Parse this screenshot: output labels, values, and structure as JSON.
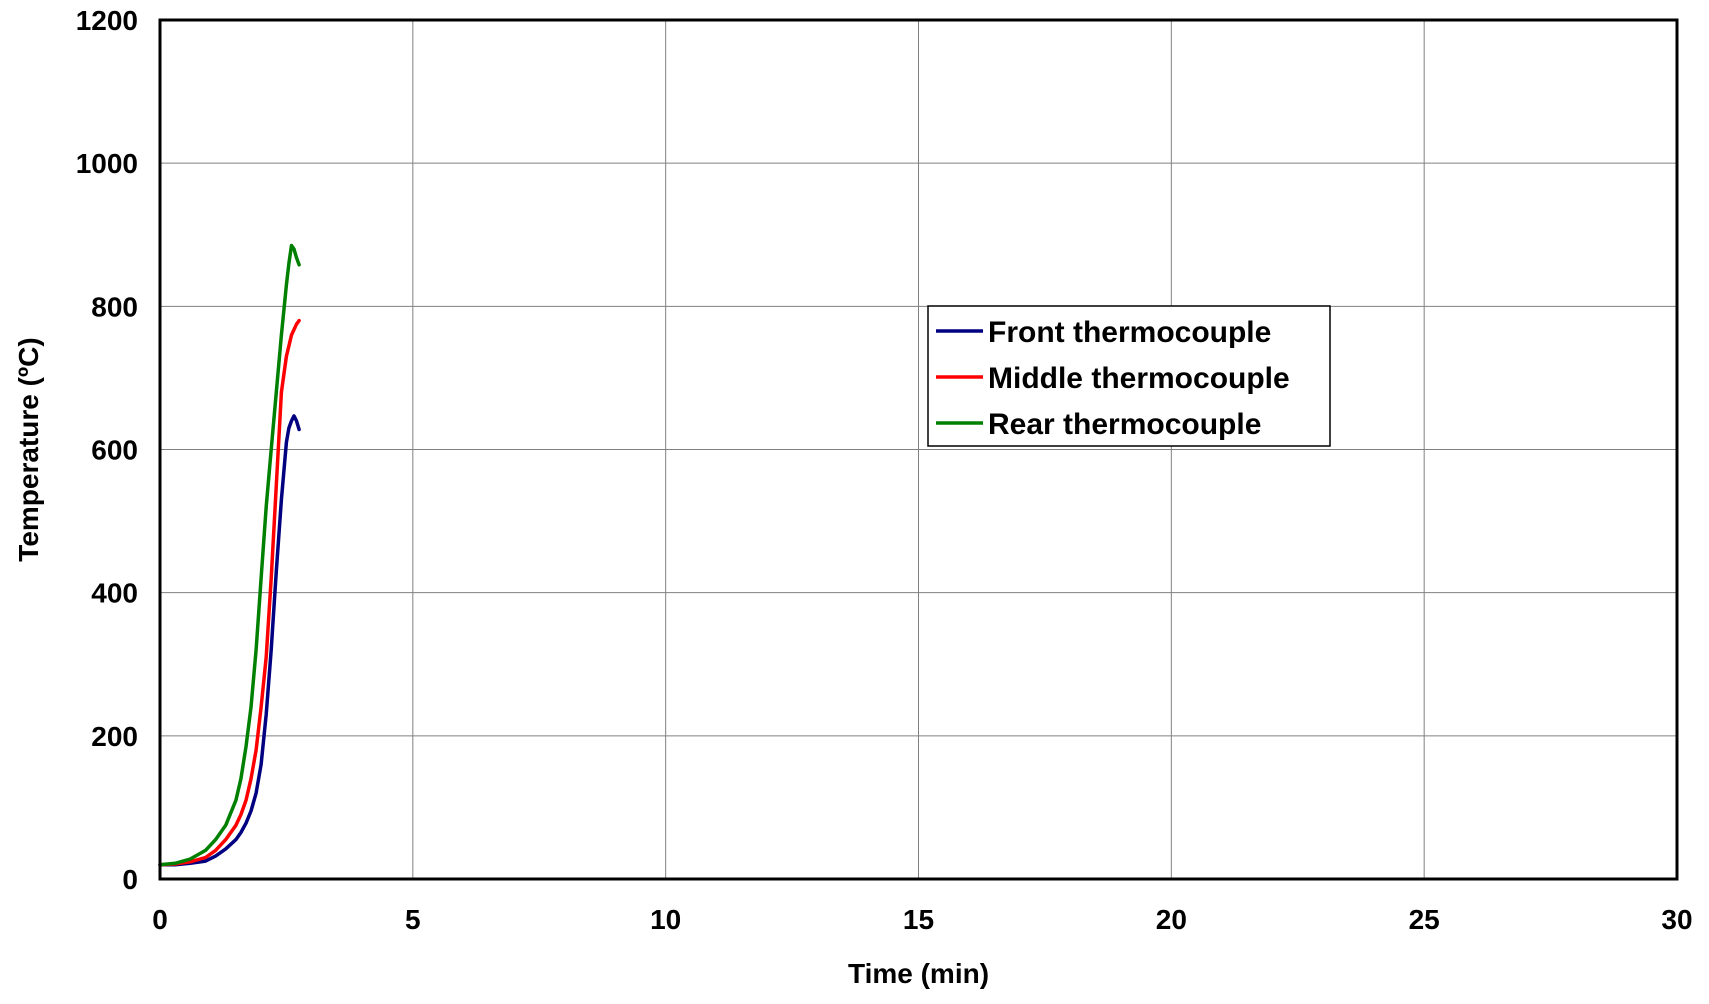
{
  "chart_data": {
    "type": "line",
    "title": "",
    "xlabel": "Time (min)",
    "ylabel": "Temperature (ºC)",
    "xlim": [
      0,
      30
    ],
    "ylim": [
      0,
      1200
    ],
    "x_ticks": [
      0,
      5,
      10,
      15,
      20,
      25,
      30
    ],
    "y_ticks": [
      0,
      200,
      400,
      600,
      800,
      1000,
      1200
    ],
    "grid": true,
    "legend_position": "center-right",
    "series": [
      {
        "name": "Front thermocouple",
        "color": "#000080",
        "x": [
          0,
          0.3,
          0.6,
          0.9,
          1.1,
          1.3,
          1.5,
          1.6,
          1.7,
          1.8,
          1.9,
          2.0,
          2.1,
          2.2,
          2.3,
          2.4,
          2.5,
          2.55,
          2.6,
          2.65,
          2.7,
          2.75
        ],
        "y": [
          20,
          20,
          22,
          25,
          32,
          42,
          55,
          65,
          78,
          95,
          120,
          160,
          230,
          320,
          430,
          530,
          610,
          630,
          640,
          647,
          640,
          628
        ]
      },
      {
        "name": "Middle thermocouple",
        "color": "#ff0000",
        "x": [
          0,
          0.3,
          0.6,
          0.9,
          1.1,
          1.3,
          1.5,
          1.6,
          1.7,
          1.8,
          1.9,
          2.0,
          2.1,
          2.2,
          2.3,
          2.4,
          2.5,
          2.6,
          2.7,
          2.75
        ],
        "y": [
          20,
          21,
          24,
          30,
          40,
          55,
          75,
          90,
          110,
          140,
          180,
          240,
          310,
          420,
          550,
          680,
          730,
          760,
          775,
          780
        ]
      },
      {
        "name": "Rear thermocouple",
        "color": "#008000",
        "x": [
          0,
          0.3,
          0.6,
          0.9,
          1.1,
          1.3,
          1.5,
          1.6,
          1.7,
          1.8,
          1.9,
          2.0,
          2.1,
          2.2,
          2.3,
          2.4,
          2.5,
          2.55,
          2.6,
          2.65,
          2.7,
          2.75
        ],
        "y": [
          20,
          22,
          28,
          40,
          55,
          75,
          110,
          140,
          185,
          240,
          320,
          420,
          520,
          600,
          680,
          760,
          830,
          860,
          885,
          880,
          868,
          858
        ]
      }
    ]
  }
}
